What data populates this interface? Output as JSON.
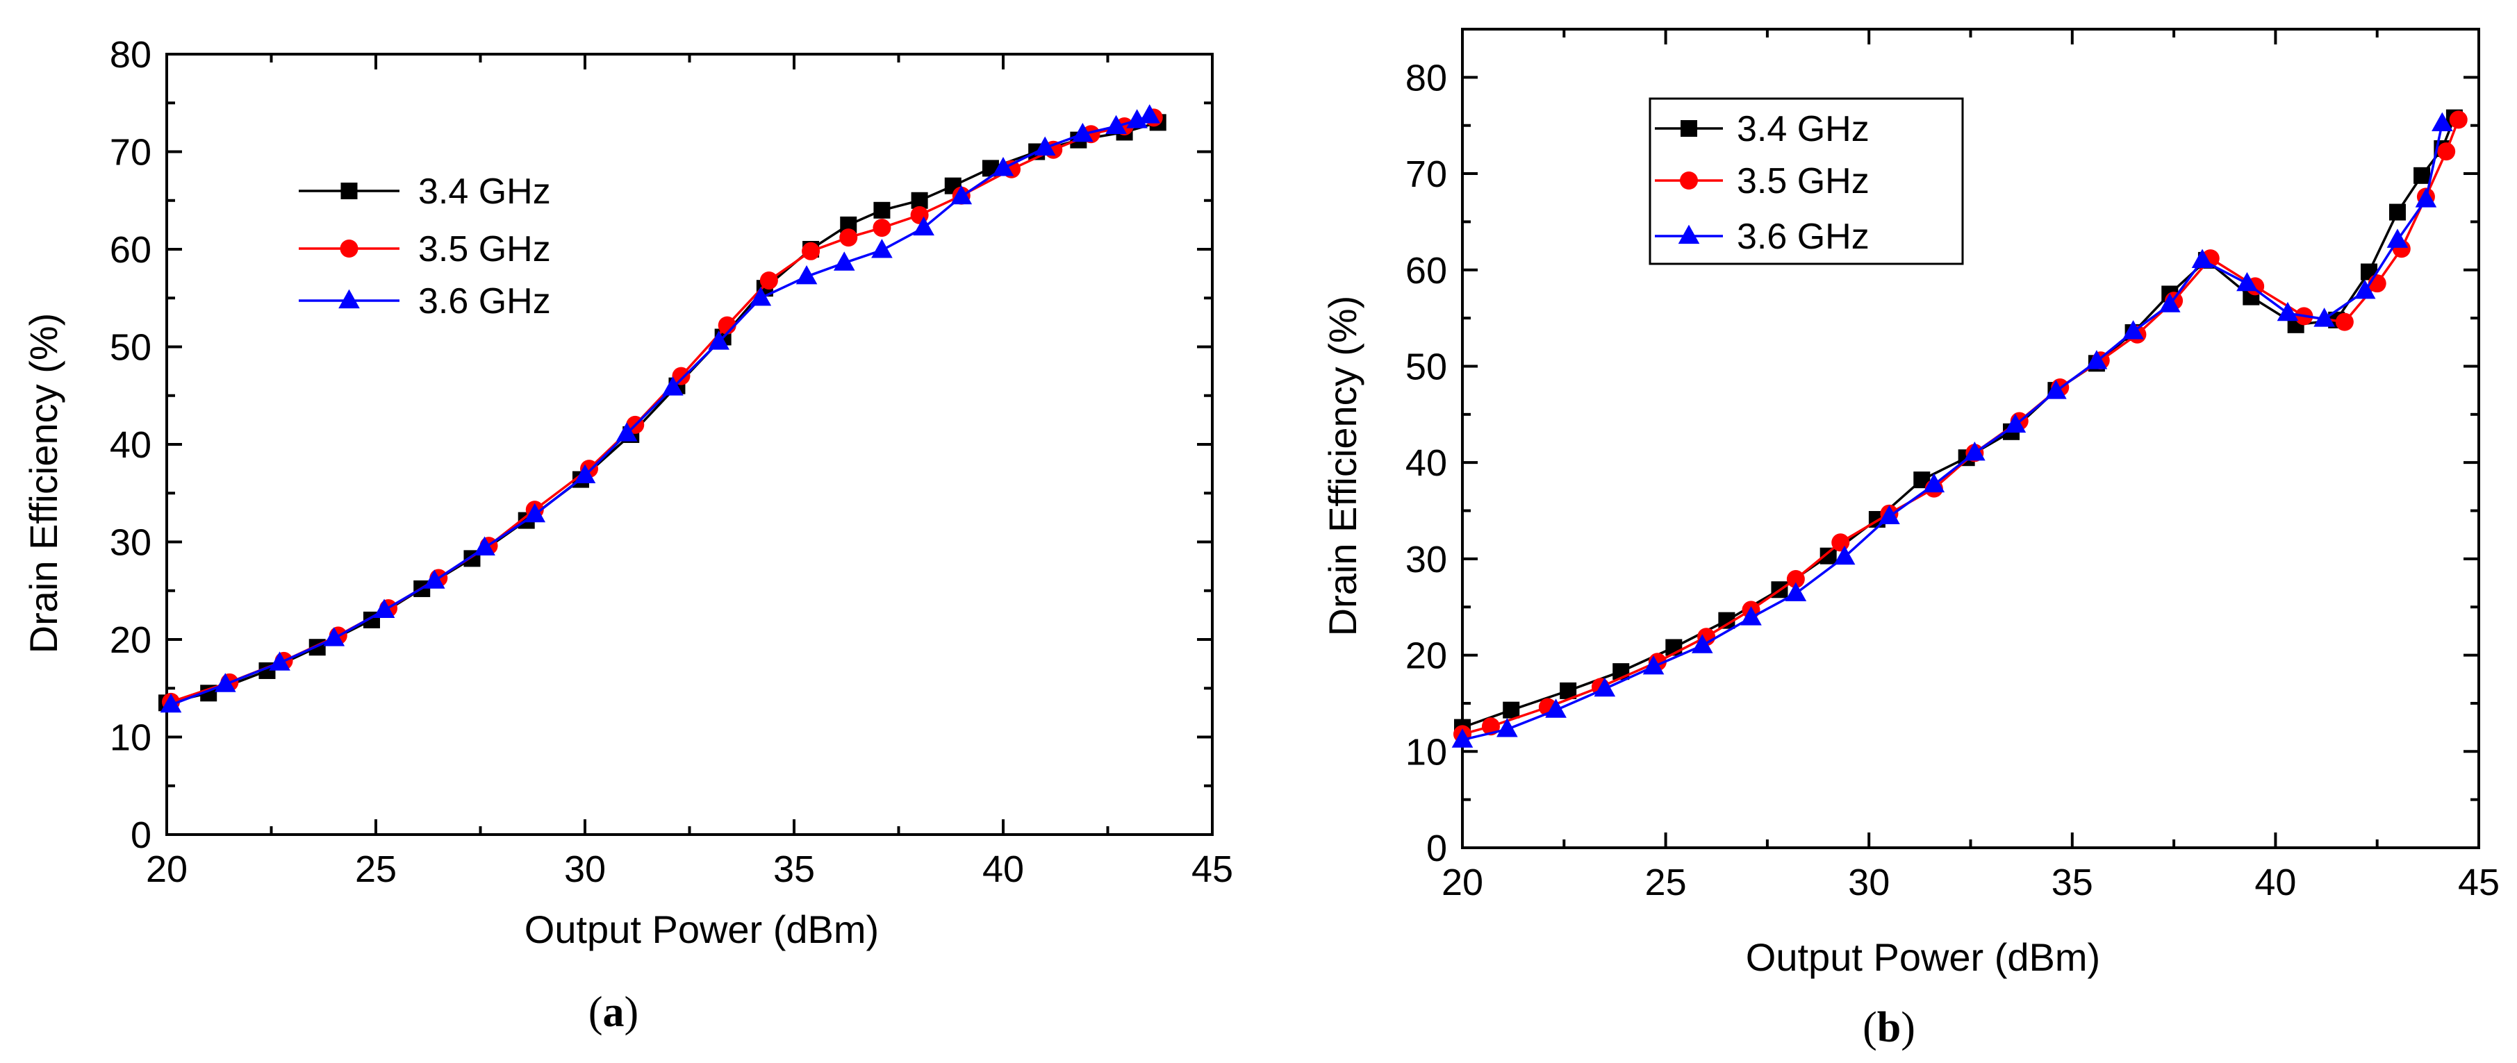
{
  "figure": {
    "panels": [
      {
        "caption_letter": "a"
      },
      {
        "caption_letter": "b"
      }
    ]
  },
  "chart_data": [
    {
      "type": "line",
      "panel": "a",
      "title": "",
      "xlabel": "Output Power (dBm)",
      "ylabel": "Drain Efficiency (%)",
      "xlim": [
        20,
        45
      ],
      "ylim": [
        0,
        80
      ],
      "xticks": [
        20,
        25,
        30,
        35,
        40,
        45
      ],
      "yticks": [
        0,
        10,
        20,
        30,
        40,
        50,
        60,
        70,
        80
      ],
      "grid": false,
      "legend_position": "upper-left",
      "series": [
        {
          "name": "3.4 GHz",
          "color": "#000000",
          "marker": "square",
          "x": [
            20.0,
            21.0,
            22.4,
            23.6,
            24.9,
            26.1,
            27.3,
            28.6,
            29.9,
            31.1,
            32.2,
            33.3,
            34.3,
            35.4,
            36.3,
            37.1,
            38.0,
            38.8,
            39.7,
            40.8,
            41.8,
            42.9,
            43.7
          ],
          "y": [
            13.5,
            14.5,
            16.8,
            19.2,
            22.0,
            25.2,
            28.3,
            32.2,
            36.4,
            41.0,
            46.0,
            51.0,
            56.0,
            60.0,
            62.5,
            64.0,
            65.0,
            66.5,
            68.3,
            70.0,
            71.2,
            72.0,
            73.0
          ]
        },
        {
          "name": "3.5 GHz",
          "color": "#ff0000",
          "marker": "circle",
          "x": [
            20.1,
            21.5,
            22.8,
            24.1,
            25.3,
            26.5,
            27.7,
            28.8,
            30.1,
            31.2,
            32.3,
            33.4,
            34.4,
            35.4,
            36.3,
            37.1,
            38.0,
            39.0,
            40.2,
            41.2,
            42.1,
            42.9,
            43.6
          ],
          "y": [
            13.6,
            15.6,
            17.8,
            20.4,
            23.2,
            26.3,
            29.6,
            33.3,
            37.5,
            42.0,
            47.0,
            52.2,
            56.8,
            59.8,
            61.2,
            62.2,
            63.5,
            65.5,
            68.2,
            70.2,
            71.8,
            72.6,
            73.5
          ]
        },
        {
          "name": "3.6 GHz",
          "color": "#0000ff",
          "marker": "triangle",
          "x": [
            20.1,
            21.4,
            22.7,
            24.0,
            25.2,
            26.4,
            27.6,
            28.8,
            30.0,
            31.0,
            32.1,
            33.2,
            34.2,
            35.3,
            36.2,
            37.1,
            38.1,
            39.0,
            40.0,
            41.0,
            41.9,
            42.7,
            43.2,
            43.5
          ],
          "y": [
            13.3,
            15.4,
            17.6,
            20.1,
            23.0,
            26.0,
            29.4,
            32.8,
            36.8,
            41.1,
            45.8,
            50.5,
            55.0,
            57.2,
            58.6,
            59.9,
            62.2,
            65.4,
            68.3,
            70.4,
            71.8,
            72.6,
            73.2,
            73.7
          ]
        }
      ]
    },
    {
      "type": "line",
      "panel": "b",
      "title": "",
      "xlabel": "Output Power (dBm)",
      "ylabel": "Drain Efficiency (%)",
      "xlim": [
        20,
        45
      ],
      "ylim": [
        0,
        85
      ],
      "xticks": [
        20,
        25,
        30,
        35,
        40,
        45
      ],
      "yticks": [
        0,
        10,
        20,
        30,
        40,
        50,
        60,
        70,
        80
      ],
      "grid": false,
      "legend_position": "upper-left",
      "series": [
        {
          "name": "3.4 GHz",
          "color": "#000000",
          "marker": "square",
          "x": [
            20.0,
            21.2,
            22.6,
            23.9,
            25.2,
            26.5,
            27.8,
            29.0,
            30.2,
            31.3,
            32.4,
            33.5,
            34.6,
            35.6,
            36.5,
            37.4,
            38.3,
            39.4,
            40.5,
            41.5,
            42.3,
            43.0,
            43.6,
            44.1,
            44.4
          ],
          "y": [
            12.5,
            14.3,
            16.3,
            18.3,
            20.8,
            23.6,
            26.8,
            30.3,
            34.1,
            38.2,
            40.5,
            43.2,
            47.5,
            50.3,
            53.5,
            57.5,
            61.0,
            57.2,
            54.3,
            54.8,
            59.8,
            66.0,
            69.8,
            72.6,
            75.8
          ]
        },
        {
          "name": "3.5 GHz",
          "color": "#ff0000",
          "marker": "circle",
          "x": [
            20.0,
            20.7,
            22.1,
            23.4,
            24.8,
            26.0,
            27.1,
            28.2,
            29.3,
            30.5,
            31.6,
            32.6,
            33.7,
            34.7,
            35.7,
            36.6,
            37.5,
            38.4,
            39.5,
            40.7,
            41.7,
            42.5,
            43.1,
            43.7,
            44.2,
            44.5
          ],
          "y": [
            11.8,
            12.6,
            14.6,
            16.7,
            19.3,
            21.9,
            24.7,
            27.9,
            31.7,
            34.7,
            37.3,
            41.0,
            44.3,
            47.8,
            50.6,
            53.3,
            56.8,
            61.2,
            58.3,
            55.2,
            54.6,
            58.6,
            62.2,
            67.6,
            72.3,
            75.6
          ]
        },
        {
          "name": "3.6 GHz",
          "color": "#0000ff",
          "marker": "triangle",
          "x": [
            20.0,
            21.1,
            22.3,
            23.5,
            24.7,
            25.9,
            27.1,
            28.2,
            29.4,
            30.5,
            31.6,
            32.6,
            33.6,
            34.6,
            35.6,
            36.5,
            37.4,
            38.2,
            39.3,
            40.3,
            41.2,
            42.2,
            43.0,
            43.7,
            44.1
          ],
          "y": [
            11.2,
            12.3,
            14.3,
            16.5,
            18.8,
            21.0,
            23.9,
            26.4,
            30.2,
            34.4,
            37.7,
            41.0,
            43.9,
            47.4,
            50.5,
            53.6,
            56.4,
            61.0,
            58.6,
            55.5,
            54.9,
            57.8,
            63.1,
            67.3,
            75.2
          ]
        }
      ]
    }
  ]
}
